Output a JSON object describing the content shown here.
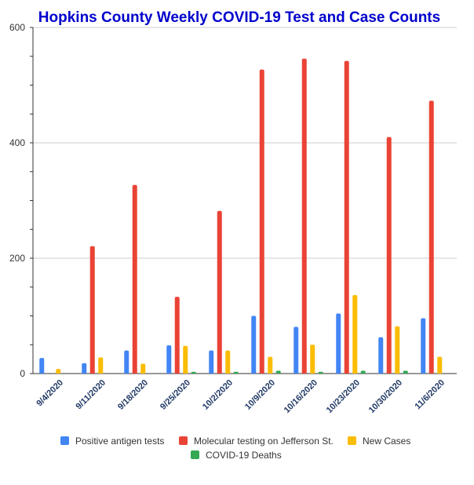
{
  "chart_data": {
    "type": "bar",
    "title": "Hopkins County Weekly COVID-19 Test and Case Counts",
    "title_color": "#0000cc",
    "categories": [
      "9/4/2020",
      "9/11/2020",
      "9/18/2020",
      "9/25/2020",
      "10/2/2020",
      "10/9/2020",
      "10/16/2020",
      "10/23/2020",
      "10/30/2020",
      "11/6/2020"
    ],
    "series": [
      {
        "name": "Positive antigen tests",
        "color": "#4285f4",
        "values": [
          27,
          18,
          40,
          49,
          40,
          100,
          81,
          104,
          63,
          96
        ]
      },
      {
        "name": "Molecular testing on Jefferson St.",
        "color": "#ea4335",
        "values": [
          0,
          221,
          327,
          133,
          282,
          527,
          546,
          542,
          410,
          473
        ]
      },
      {
        "name": "New Cases",
        "color": "#fbbc04",
        "values": [
          8,
          28,
          17,
          48,
          40,
          29,
          50,
          136,
          82,
          29
        ]
      },
      {
        "name": "COVID-19 Deaths",
        "color": "#34a853",
        "values": [
          0,
          0,
          0,
          3,
          3,
          5,
          3,
          5,
          5,
          0
        ]
      }
    ],
    "ylim": [
      0,
      600
    ],
    "yticks": [
      0,
      200,
      400,
      600
    ],
    "grid": true,
    "legend": "bottom"
  }
}
